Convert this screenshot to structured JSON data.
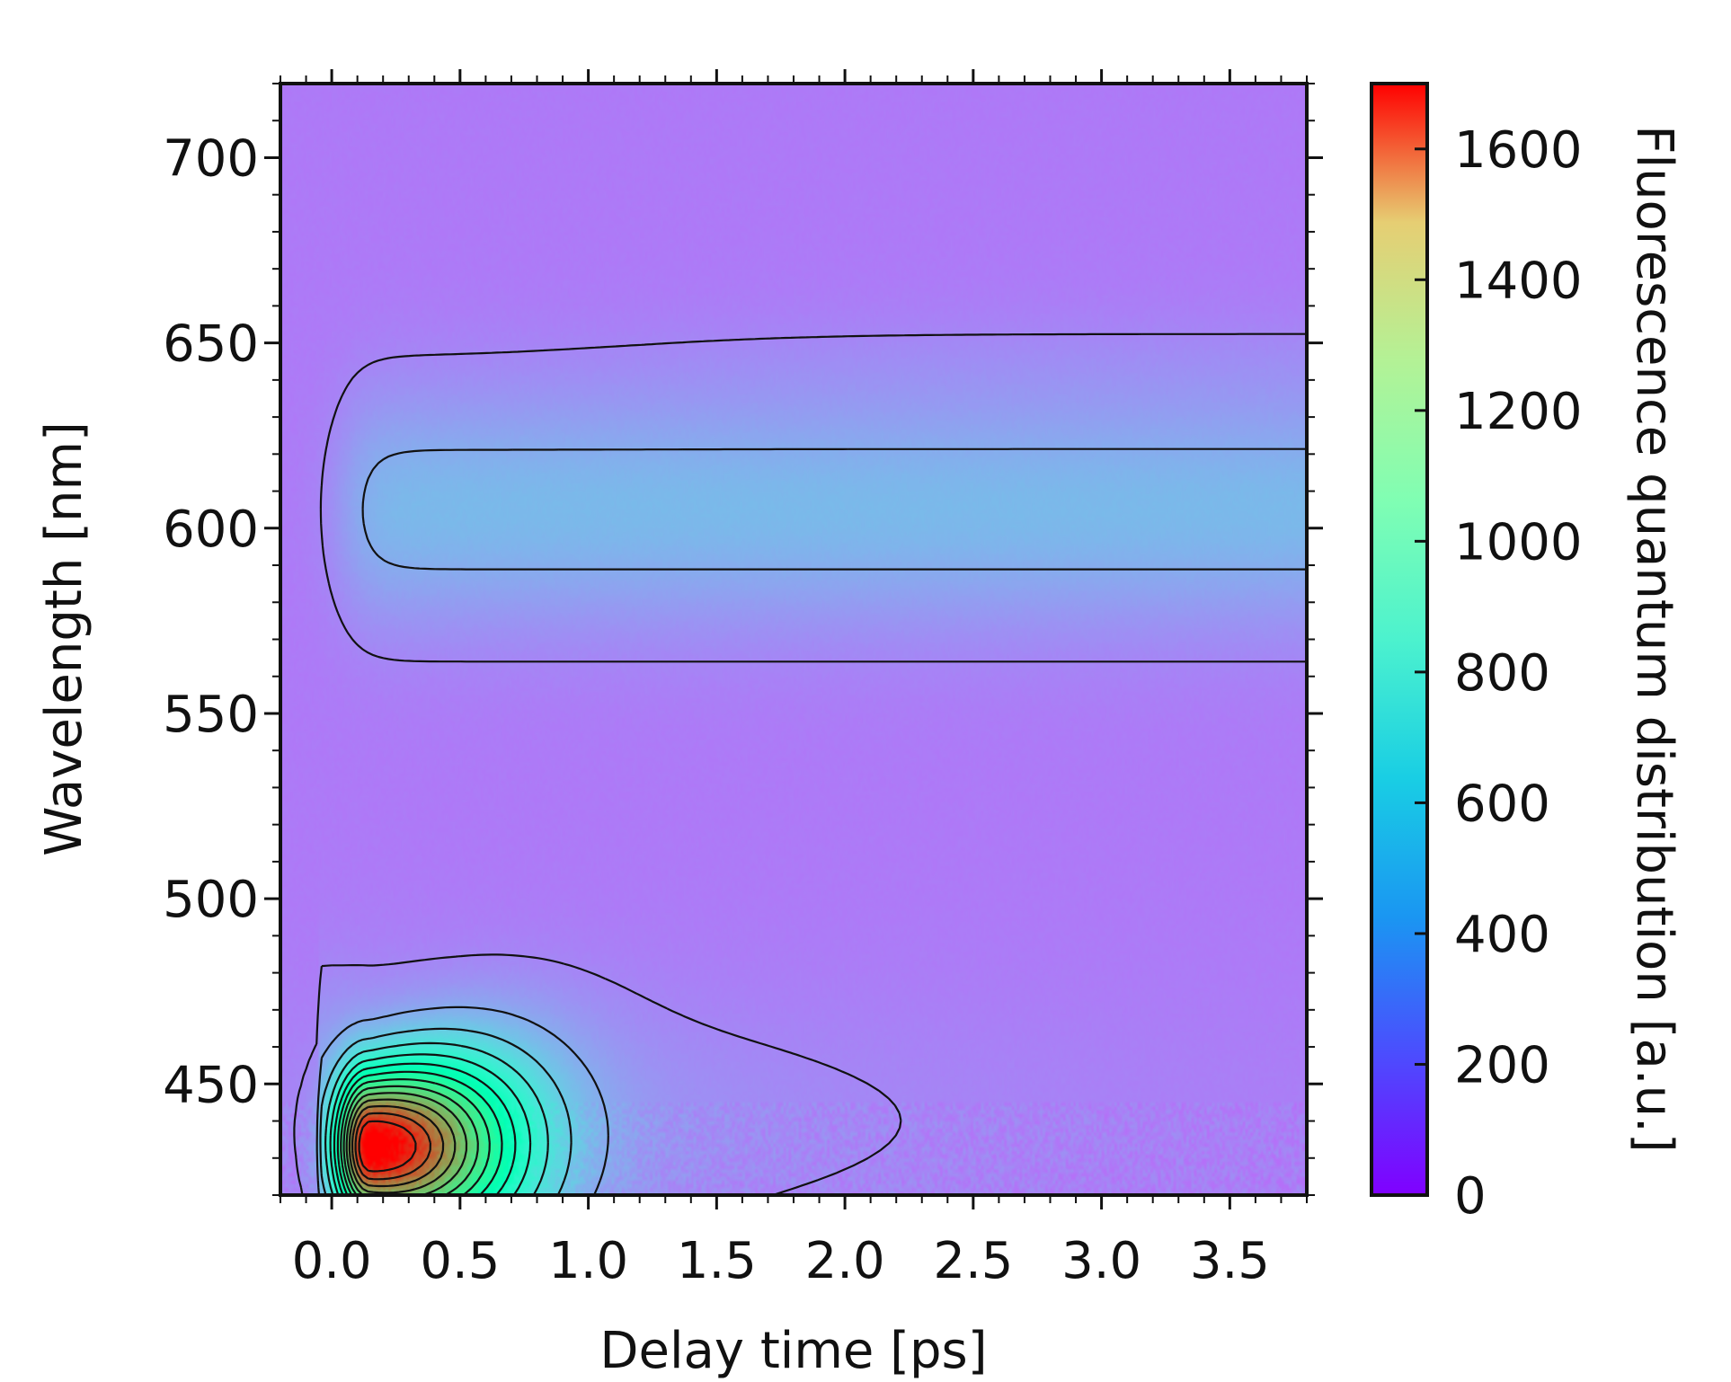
{
  "chart_data": {
    "type": "heatmap",
    "xlabel": "Delay time [ps]",
    "ylabel": "Wavelength [nm]",
    "colorbar_label": "Fluorescence quantum distribution [a.u.]",
    "xlim": [
      -0.2,
      3.8
    ],
    "ylim": [
      420,
      720
    ],
    "x_ticks": [
      "0.0",
      "0.5",
      "1.0",
      "1.5",
      "2.0",
      "2.5",
      "3.0",
      "3.5"
    ],
    "y_ticks": [
      "450",
      "500",
      "550",
      "600",
      "650",
      "700"
    ],
    "colorbar": {
      "range": [
        0,
        1700
      ],
      "ticks": [
        "0",
        "200",
        "400",
        "600",
        "800",
        "1000",
        "1200",
        "1400",
        "1600"
      ],
      "colormap": "rainbow"
    },
    "background_level": 270,
    "features": [
      {
        "kind": "gaussian-peak",
        "x_center": 0.15,
        "y_center": 433,
        "peak_value": 1650,
        "description": "intense fluorescence peak near time zero"
      },
      {
        "kind": "band",
        "y_center": 605,
        "x_start": 0.0,
        "x_end": 3.8,
        "peak_value": 440
      },
      {
        "kind": "band",
        "y_center": 645,
        "x_start": 1.0,
        "x_end": 3.8,
        "peak_value": 380
      }
    ],
    "contour_levels": [
      300,
      400,
      500,
      600,
      700,
      800,
      900,
      1000,
      1100,
      1200,
      1300,
      1400,
      1500,
      1600
    ]
  }
}
